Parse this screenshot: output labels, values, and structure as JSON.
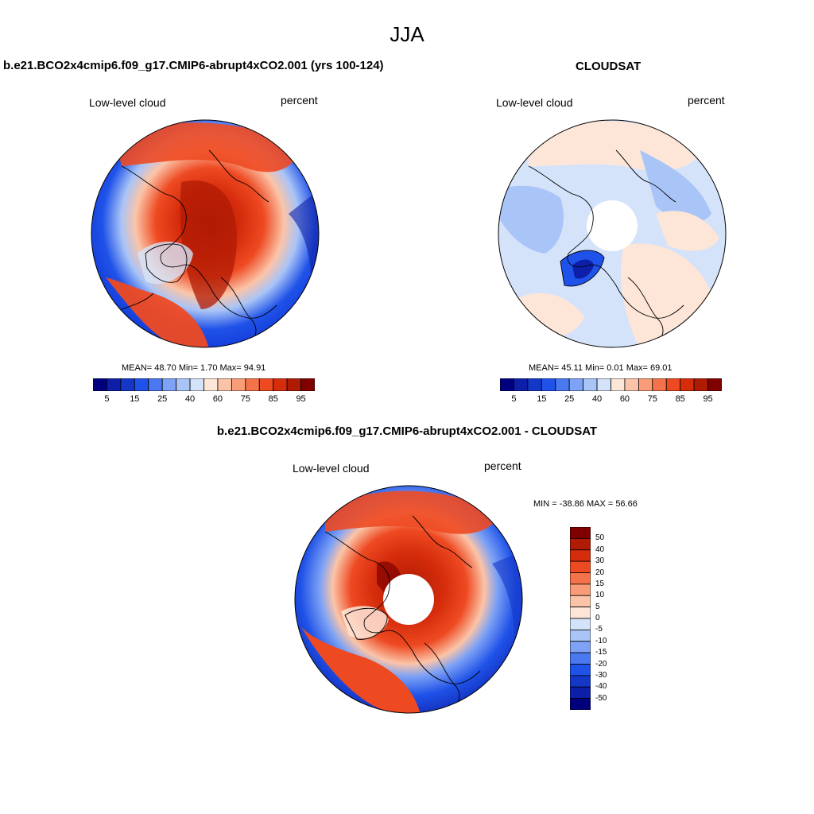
{
  "figure": {
    "season": "JJA",
    "model_title": "b.e21.BCO2x4cmip6.f09_g17.CMIP6-abrupt4xCO2.001 (yrs 100-124)",
    "obs_title": "CLOUDSAT",
    "diff_title": "b.e21.BCO2x4cmip6.f09_g17.CMIP6-abrupt4xCO2.001 - CLOUDSAT"
  },
  "panels": [
    {
      "variable": "Low-level cloud",
      "units": "percent",
      "stats_text": "MEAN=  48.70  Min=   1.70  Max=  94.91",
      "mean": 48.7,
      "min": 1.7,
      "max": 94.91
    },
    {
      "variable": "Low-level cloud",
      "units": "percent",
      "stats_text": "MEAN=  45.11  Min=   0.01  Max=  69.01",
      "mean": 45.11,
      "min": 0.01,
      "max": 69.01
    },
    {
      "variable": "Low-level cloud",
      "units": "percent",
      "stats_text": "MIN = -38.86 MAX =  56.66",
      "min": -38.86,
      "max": 56.66
    }
  ],
  "colorbar_abs": {
    "tick_labels": [
      "5",
      "15",
      "25",
      "40",
      "60",
      "75",
      "85",
      "95"
    ],
    "colors": [
      "#00007f",
      "#0d1fa8",
      "#1437c8",
      "#1f52e8",
      "#4a78f0",
      "#7ea2f5",
      "#a9c4f7",
      "#d4e3fa",
      "#fde6d8",
      "#fbc4a8",
      "#f99d78",
      "#f5734a",
      "#ee4a22",
      "#d52c0c",
      "#b01b04",
      "#800000"
    ]
  },
  "colorbar_diff": {
    "tick_labels": [
      "50",
      "40",
      "30",
      "20",
      "15",
      "10",
      "5",
      "0",
      "-5",
      "-10",
      "-15",
      "-20",
      "-30",
      "-40",
      "-50"
    ],
    "colors": [
      "#800000",
      "#b01b04",
      "#d52c0c",
      "#ee4a22",
      "#f5734a",
      "#f99d78",
      "#fbc4a8",
      "#fde6d8",
      "#d4e3fa",
      "#a9c4f7",
      "#7ea2f5",
      "#4a78f0",
      "#1f52e8",
      "#1437c8",
      "#0d1fa8",
      "#00007f"
    ]
  },
  "map_colors": {
    "deep_blue": "#0b2bd0",
    "blue": "#1f52e8",
    "mid_blue": "#7ea2f5",
    "light_blue": "#d4e3fa",
    "pale_peach": "#fde6d8",
    "light_red": "#f99d78",
    "red": "#ee4a22",
    "dark_red": "#b01b04"
  }
}
